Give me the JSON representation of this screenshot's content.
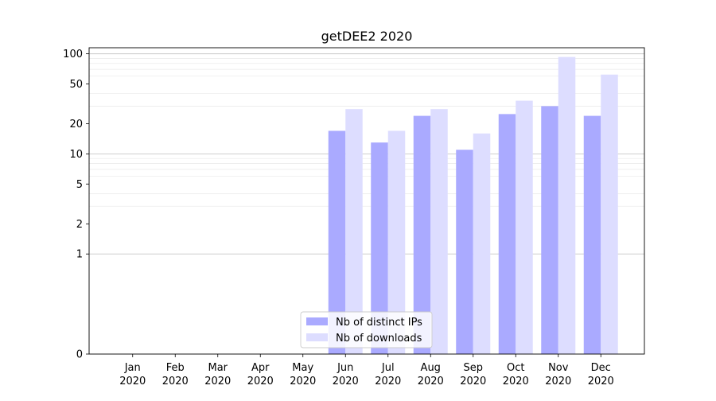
{
  "chart_data": {
    "type": "bar",
    "title": "getDEE2 2020",
    "xlabel": "",
    "ylabel": "",
    "y_scale": "symlog",
    "ylim": [
      0,
      115
    ],
    "y_ticks": [
      0,
      1,
      2,
      5,
      10,
      20,
      50,
      100
    ],
    "grid": "horizontal",
    "legend_position": "lower-center",
    "categories": [
      {
        "month": "Jan",
        "year": "2020"
      },
      {
        "month": "Feb",
        "year": "2020"
      },
      {
        "month": "Mar",
        "year": "2020"
      },
      {
        "month": "Apr",
        "year": "2020"
      },
      {
        "month": "May",
        "year": "2020"
      },
      {
        "month": "Jun",
        "year": "2020"
      },
      {
        "month": "Jul",
        "year": "2020"
      },
      {
        "month": "Aug",
        "year": "2020"
      },
      {
        "month": "Sep",
        "year": "2020"
      },
      {
        "month": "Oct",
        "year": "2020"
      },
      {
        "month": "Nov",
        "year": "2020"
      },
      {
        "month": "Dec",
        "year": "2020"
      }
    ],
    "series": [
      {
        "name": "Nb of distinct IPs",
        "color": "#aaaaff",
        "values": [
          0,
          0,
          0,
          0,
          0,
          17,
          13,
          24,
          11,
          25,
          30,
          24
        ]
      },
      {
        "name": "Nb of downloads",
        "color": "#ddddff",
        "values": [
          0,
          0,
          0,
          0,
          0,
          28,
          17,
          28,
          16,
          34,
          93,
          62
        ]
      }
    ]
  }
}
